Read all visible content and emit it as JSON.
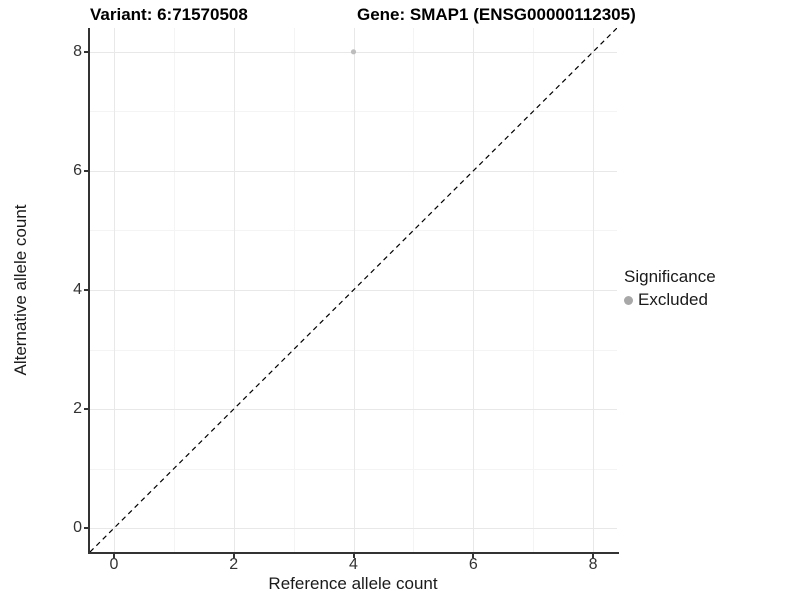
{
  "figure": {
    "title_variant": "Variant: 6:71570508",
    "title_gene": "Gene: SMAP1 (ENSG00000112305)"
  },
  "axes": {
    "x_label": "Reference allele count",
    "y_label": "Alternative allele count"
  },
  "legend": {
    "title": "Significance",
    "items": [
      {
        "label": "Excluded",
        "color": "#a8a8a8"
      }
    ]
  },
  "colors": {
    "point": "#bdbdbd",
    "axis_line": "#333333",
    "grid_major": "#e8e8e8",
    "grid_minor": "#f4f4f4",
    "reference_line": "#000000",
    "background": "#ffffff"
  },
  "chart_data": {
    "type": "scatter",
    "title": "Variant: 6:71570508    Gene: SMAP1 (ENSG00000112305)",
    "xlabel": "Reference allele count",
    "ylabel": "Alternative allele count",
    "xlim": [
      -0.4,
      8.4
    ],
    "ylim": [
      -0.4,
      8.4
    ],
    "x_ticks": [
      0,
      2,
      4,
      6,
      8
    ],
    "y_ticks": [
      0,
      2,
      4,
      6,
      8
    ],
    "x_minor_ticks": [
      1,
      3,
      5,
      7
    ],
    "y_minor_ticks": [
      1,
      3,
      5,
      7
    ],
    "grid": true,
    "legend_position": "right",
    "series": [
      {
        "name": "Excluded",
        "color": "#bdbdbd",
        "points": [
          {
            "x": 4,
            "y": 8
          }
        ]
      }
    ],
    "reference_line": {
      "name": "identity",
      "style": "dashed",
      "x1": -0.4,
      "y1": -0.4,
      "x2": 8.4,
      "y2": 8.4,
      "color": "#000000"
    }
  }
}
